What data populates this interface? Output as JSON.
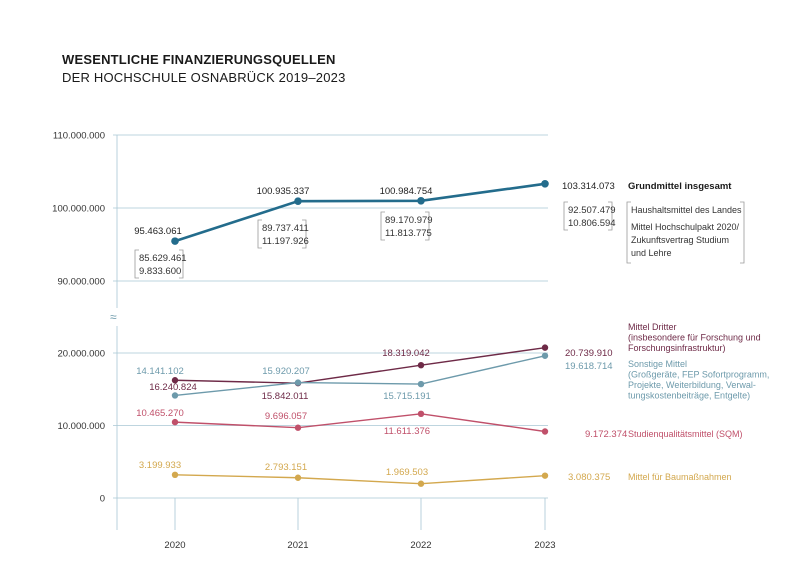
{
  "title": "WESENTLICHE FINANZIERUNGSQUELLEN",
  "subtitle": "DER HOCHSCHULE OSNABRÜCK 2019–2023",
  "colors": {
    "grundmittel": "#236c8c",
    "dritter": "#6e2a47",
    "sonstige": "#6d9aab",
    "sqm": "#c0506a",
    "bau": "#d3a84e",
    "grid": "#a9c7d4",
    "bracket": "#9a9a9a"
  },
  "chart_data": {
    "type": "line",
    "categories": [
      "2020",
      "2021",
      "2022",
      "2023"
    ],
    "y_ticks_upper": [
      "110.000.000",
      "100.000.000",
      "90.000.000"
    ],
    "y_ticks_lower": [
      "20.000.000",
      "10.000.000",
      "0"
    ],
    "axis_break_symbol": "≈",
    "grid": true,
    "series": [
      {
        "key": "grundmittel",
        "name": "Grundmittel insgesamt",
        "values": [
          95463061,
          100935337,
          100984754,
          103314073
        ],
        "labels": [
          "95.463.061",
          "100.935.337",
          "100.984.754",
          "103.314.073"
        ],
        "breakdown": [
          [
            "85.629.461",
            "9.833.600"
          ],
          [
            "89.737.411",
            "11.197.926"
          ],
          [
            "89.170.979",
            "11.813.775"
          ],
          [
            "92.507.479",
            "10.806.594"
          ]
        ],
        "breakdown_legend": [
          "Haushaltsmittel des Landes",
          "Mittel Hochschulpakt 2020/",
          "Zukunftsvertrag Studium",
          "und Lehre"
        ]
      },
      {
        "key": "dritter",
        "name": "Mittel Dritter",
        "name_lines": [
          "Mittel Dritter",
          "(insbesondere für Forschung und",
          "Forschungsinfrastruktur)"
        ],
        "values": [
          16240824,
          15842011,
          18319042,
          20739910
        ],
        "labels": [
          "16.240.824",
          "15.842.011",
          "18.319.042",
          "20.739.910"
        ]
      },
      {
        "key": "sonstige",
        "name": "Sonstige Mittel",
        "name_lines": [
          "Sonstige Mittel",
          "(Großgeräte, FEP Sofortprogramm,",
          "Projekte, Weiterbildung, Verwal-",
          "tungskostenbeiträge, Entgelte)"
        ],
        "values": [
          14141102,
          15920207,
          15715191,
          19618714
        ],
        "labels": [
          "14.141.102",
          "15.920.207",
          "15.715.191",
          "19.618.714"
        ]
      },
      {
        "key": "sqm",
        "name": "Studienqualitätsmittel (SQM)",
        "values": [
          10465270,
          9696057,
          11611376,
          9172374
        ],
        "labels": [
          "10.465.270",
          "9.696.057",
          "11.611.376",
          "9.172.374"
        ]
      },
      {
        "key": "bau",
        "name": "Mittel für Baumaßnahmen",
        "values": [
          3199933,
          2793151,
          1969503,
          3080375
        ],
        "labels": [
          "3.199.933",
          "2.793.151",
          "1.969.503",
          "3.080.375"
        ]
      }
    ]
  }
}
